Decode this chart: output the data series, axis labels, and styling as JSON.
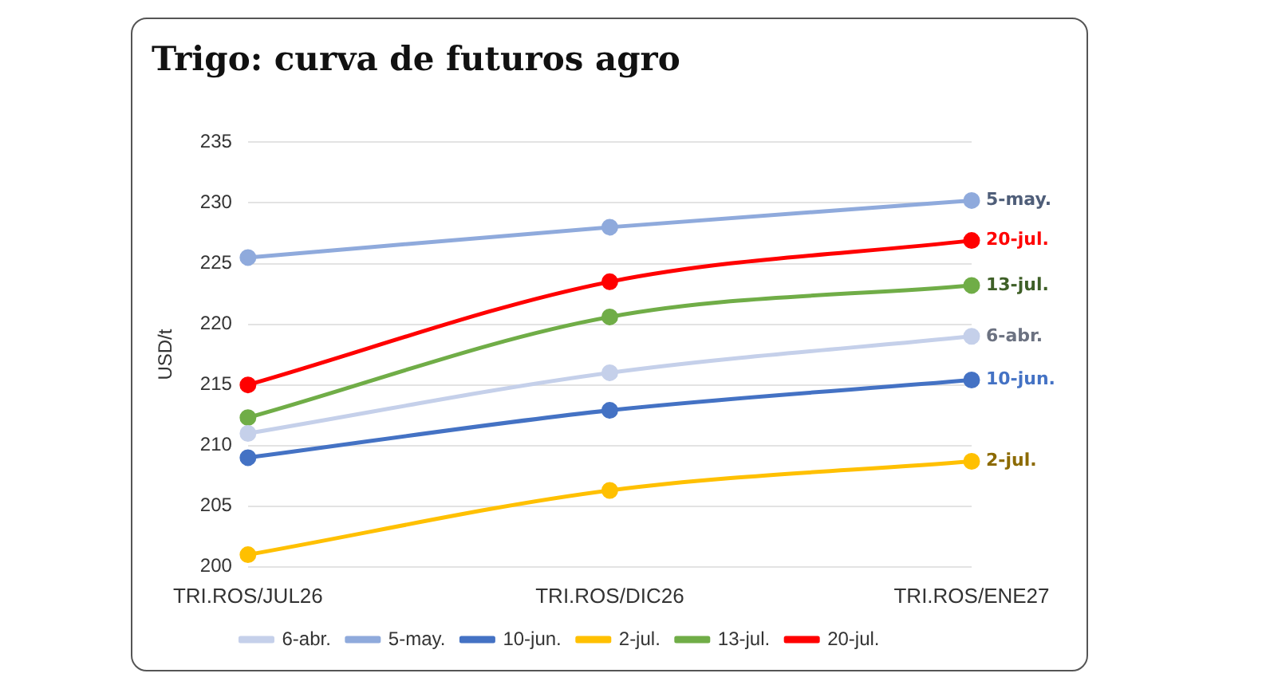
{
  "chart_data": {
    "type": "line",
    "title": "Trigo: curva de futuros agro",
    "ylabel": "USD/t",
    "categories": [
      "TRI.ROS/JUL26",
      "TRI.ROS/DIC26",
      "TRI.ROS/ENE27"
    ],
    "series": [
      {
        "name": "6-abr.",
        "color": "#c5d0ea",
        "values": [
          211,
          216,
          219
        ]
      },
      {
        "name": "5-may.",
        "color": "#8faadc",
        "values": [
          225.5,
          228,
          230.2
        ]
      },
      {
        "name": "10-jun.",
        "color": "#4472c4",
        "values": [
          209,
          212.9,
          215.4
        ]
      },
      {
        "name": "2-jul.",
        "color": "#ffc000",
        "values": [
          201,
          206.3,
          208.7
        ]
      },
      {
        "name": "13-jul.",
        "color": "#70ad47",
        "values": [
          212.3,
          220.6,
          223.2
        ]
      },
      {
        "name": "20-jul.",
        "color": "#ff0000",
        "values": [
          215,
          223.5,
          226.9
        ]
      }
    ],
    "ylim": [
      200,
      235
    ],
    "yticks": [
      200,
      205,
      210,
      215,
      220,
      225,
      230,
      235
    ],
    "grid": "y",
    "legend": "bottom",
    "marker": "circle",
    "line_style": "solid"
  }
}
